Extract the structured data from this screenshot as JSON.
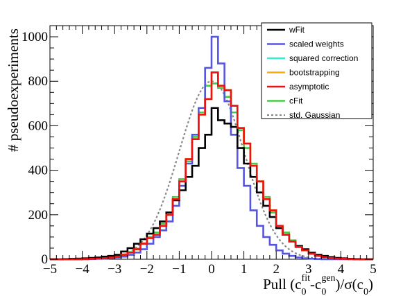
{
  "chart_data": {
    "type": "line",
    "xlabel": {
      "prefix": "Pull (c",
      "sub1": "0",
      "sup1": "fit",
      "mid": "-c",
      "sub2": "0",
      "sup2": "gen",
      "suffix": ")/σ(c",
      "sub3": "0",
      "end": ")"
    },
    "ylabel": "# pseudoexperiments",
    "xlim": [
      -5,
      5
    ],
    "ylim": [
      0,
      1050
    ],
    "xticks": [
      -5,
      -4,
      -3,
      -2,
      -1,
      0,
      1,
      2,
      3,
      4,
      5
    ],
    "yticks": [
      0,
      200,
      400,
      600,
      800,
      1000
    ],
    "legend_position": "top-right",
    "bin_edges_start": -5,
    "bin_width": 0.2,
    "series": [
      {
        "name": "wFit",
        "color": "#000000",
        "style": "step",
        "values": [
          0,
          0,
          1,
          2,
          3,
          4,
          6,
          8,
          12,
          15,
          20,
          35,
          50,
          70,
          90,
          115,
          140,
          170,
          210,
          265,
          310,
          370,
          420,
          500,
          560,
          680,
          625,
          610,
          595,
          500,
          430,
          370,
          300,
          240,
          190,
          140,
          110,
          80,
          60,
          45,
          30,
          20,
          15,
          10,
          6,
          4,
          2,
          1,
          0,
          0
        ]
      },
      {
        "name": "scaled weights",
        "color": "#5555dd",
        "style": "step",
        "values": [
          0,
          0,
          0,
          0,
          0,
          0,
          1,
          2,
          3,
          5,
          8,
          12,
          20,
          30,
          45,
          70,
          100,
          130,
          170,
          240,
          330,
          430,
          560,
          680,
          860,
          1000,
          880,
          710,
          560,
          410,
          330,
          220,
          150,
          100,
          65,
          40,
          25,
          15,
          8,
          4,
          2,
          1,
          0,
          0,
          0,
          0,
          0,
          0,
          0,
          0
        ]
      },
      {
        "name": "squared correction",
        "color": "#33eecc",
        "style": "step",
        "values": [
          0,
          0,
          0,
          0,
          0,
          1,
          2,
          3,
          5,
          8,
          12,
          20,
          30,
          45,
          70,
          95,
          110,
          150,
          200,
          270,
          350,
          450,
          540,
          650,
          720,
          840,
          780,
          760,
          690,
          590,
          520,
          420,
          350,
          270,
          220,
          150,
          110,
          80,
          55,
          40,
          25,
          15,
          10,
          6,
          3,
          2,
          1,
          0,
          0,
          0
        ]
      },
      {
        "name": "bootstrapping",
        "color": "#ffaa00",
        "style": "step",
        "values": [
          0,
          0,
          0,
          0,
          0,
          1,
          2,
          3,
          5,
          8,
          12,
          20,
          30,
          45,
          70,
          95,
          110,
          150,
          200,
          270,
          350,
          450,
          540,
          650,
          720,
          840,
          780,
          760,
          690,
          590,
          520,
          420,
          350,
          270,
          220,
          150,
          110,
          80,
          55,
          40,
          25,
          15,
          10,
          6,
          3,
          2,
          1,
          0,
          0,
          0
        ]
      },
      {
        "name": "asymptotic",
        "color": "#ee1111",
        "style": "step",
        "values": [
          0,
          0,
          0,
          0,
          0,
          1,
          2,
          3,
          5,
          8,
          12,
          20,
          30,
          45,
          70,
          95,
          110,
          150,
          200,
          270,
          350,
          450,
          540,
          650,
          720,
          840,
          780,
          760,
          690,
          590,
          520,
          420,
          350,
          270,
          220,
          150,
          110,
          80,
          55,
          40,
          25,
          15,
          10,
          6,
          3,
          2,
          1,
          0,
          0,
          0
        ]
      },
      {
        "name": "cFit",
        "color": "#44cc44",
        "style": "step",
        "values": [
          0,
          0,
          0,
          0,
          0,
          1,
          2,
          3,
          5,
          8,
          12,
          22,
          32,
          48,
          72,
          100,
          120,
          160,
          210,
          280,
          360,
          440,
          550,
          660,
          780,
          790,
          770,
          730,
          660,
          580,
          500,
          430,
          350,
          280,
          210,
          150,
          120,
          85,
          60,
          42,
          27,
          16,
          10,
          6,
          3,
          2,
          1,
          0,
          0,
          0
        ]
      },
      {
        "name": "std. Gaussian",
        "color": "#888888",
        "style": "dashed-curve",
        "peak": 800,
        "mean": 0,
        "sigma": 1
      }
    ]
  }
}
